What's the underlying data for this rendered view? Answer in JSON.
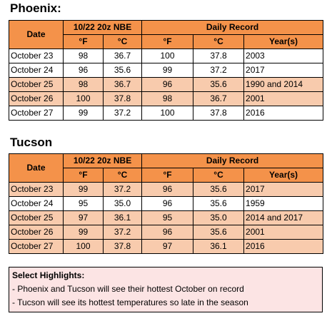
{
  "sections": [
    {
      "title": "Phoenix:",
      "header": {
        "date": "Date",
        "nbe": "10/22 20z NBE",
        "record": "Daily Record",
        "units": [
          "°F",
          "°C",
          "°F",
          "°C",
          "Year(s)"
        ]
      },
      "rows": [
        {
          "color": "#ffffff",
          "cells": [
            "October 23",
            "98",
            "36.7",
            "100",
            "37.8",
            "2003"
          ]
        },
        {
          "color": "#ffffff",
          "cells": [
            "October 24",
            "96",
            "35.6",
            "99",
            "37.2",
            "2017"
          ]
        },
        {
          "color": "#F8CBAD",
          "cells": [
            "October 25",
            "98",
            "36.7",
            "96",
            "35.6",
            "1990 and 2014"
          ]
        },
        {
          "color": "#F8CBAD",
          "cells": [
            "October 26",
            "100",
            "37.8",
            "98",
            "36.7",
            "2001"
          ]
        },
        {
          "color": "#ffffff",
          "cells": [
            "October 27",
            "99",
            "37.2",
            "100",
            "37.8",
            "2016"
          ]
        }
      ]
    },
    {
      "title": "Tucson",
      "header": {
        "date": "Date",
        "nbe": "10/22 20z NBE",
        "record": "Daily Record",
        "units": [
          "°F",
          "°C",
          "°F",
          "°C",
          "Year(s)"
        ]
      },
      "rows": [
        {
          "color": "#F8CBAD",
          "cells": [
            "October 23",
            "99",
            "37.2",
            "96",
            "35.6",
            "2017"
          ]
        },
        {
          "color": "#ffffff",
          "cells": [
            "October 24",
            "95",
            "35.0",
            "96",
            "35.6",
            "1959"
          ]
        },
        {
          "color": "#F8CBAD",
          "cells": [
            "October 25",
            "97",
            "36.1",
            "95",
            "35.0",
            "2014 and 2017"
          ]
        },
        {
          "color": "#F8CBAD",
          "cells": [
            "October 26",
            "99",
            "37.2",
            "96",
            "35.6",
            "2001"
          ]
        },
        {
          "color": "#F8CBAD",
          "cells": [
            "October 27",
            "100",
            "37.8",
            "97",
            "36.1",
            "2016"
          ]
        }
      ]
    }
  ],
  "highlights": {
    "title": "Select Highlights:",
    "items": [
      "- Phoenix and Tucson will see their hottest October on record",
      "- Tucson will see its hottest temperatures so late in the season"
    ]
  }
}
